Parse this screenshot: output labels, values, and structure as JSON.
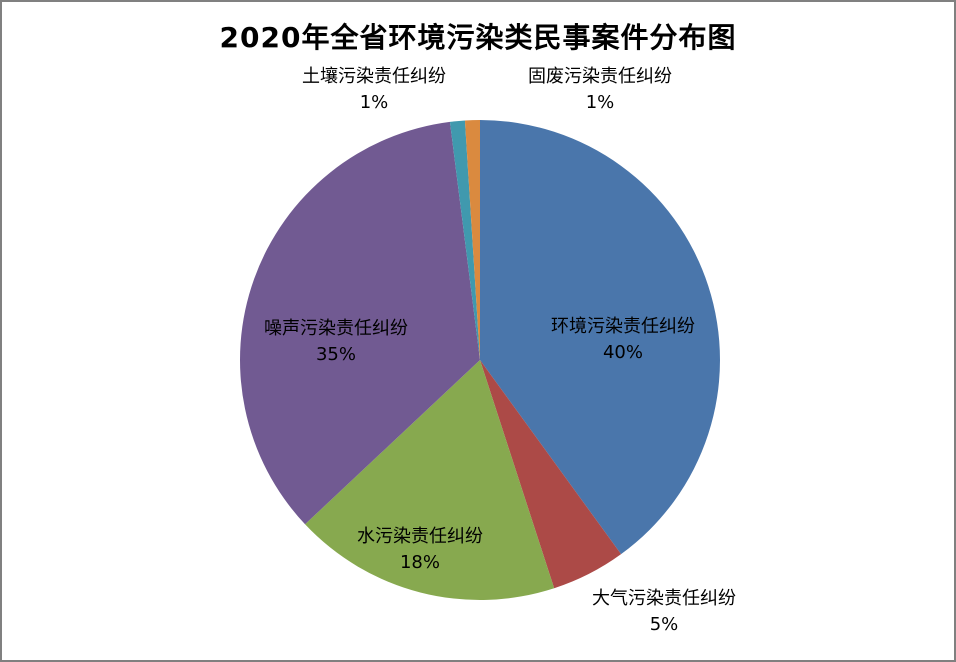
{
  "title": "2020年全省环境污染类民事案件分布图",
  "colors": {
    "background": "#ffffff",
    "frame_border": "#808080",
    "text": "#000000"
  },
  "chart_data": {
    "type": "pie",
    "title": "2020年全省环境污染类民事案件分布图",
    "start_angle_deg": -90,
    "direction": "clockwise",
    "legend": "none",
    "unit": "percent",
    "series": [
      {
        "key": "environment",
        "label": "环境污染责任纠纷",
        "value": 40,
        "pct_label": "40%",
        "color": "#4a76ab",
        "label_placement": "inside"
      },
      {
        "key": "air",
        "label": "大气污染责任纠纷",
        "value": 5,
        "pct_label": "5%",
        "color": "#ac4a47",
        "label_placement": "outside"
      },
      {
        "key": "water",
        "label": "水污染责任纠纷",
        "value": 18,
        "pct_label": "18%",
        "color": "#87a94f",
        "label_placement": "inside"
      },
      {
        "key": "noise",
        "label": "噪声污染责任纠纷",
        "value": 35,
        "pct_label": "35%",
        "color": "#715a92",
        "label_placement": "inside"
      },
      {
        "key": "soil",
        "label": "土壤污染责任纠纷",
        "value": 1,
        "pct_label": "1%",
        "color": "#4099ae",
        "label_placement": "outside"
      },
      {
        "key": "solid-waste",
        "label": "固废污染责任纠纷",
        "value": 1,
        "pct_label": "1%",
        "color": "#da8a3f",
        "label_placement": "outside"
      }
    ]
  }
}
